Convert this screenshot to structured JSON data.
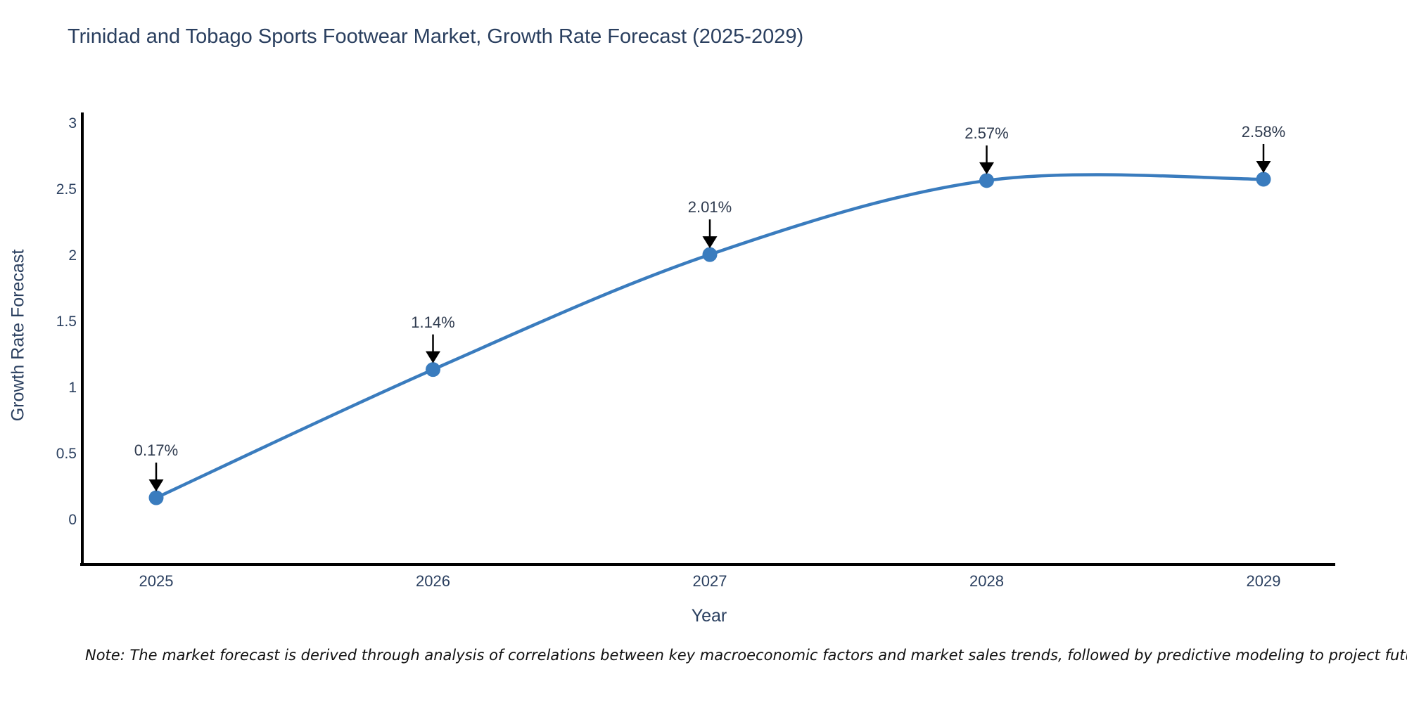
{
  "title": "Trinidad and Tobago Sports Footwear Market, Growth Rate Forecast (2025-2029)",
  "chart_data": {
    "type": "line",
    "curve": "spline",
    "x": [
      2025,
      2026,
      2027,
      2028,
      2029
    ],
    "y": [
      0.17,
      1.14,
      2.01,
      2.57,
      2.58
    ],
    "point_labels": [
      "0.17%",
      "1.14%",
      "2.01%",
      "2.57%",
      "2.58%"
    ],
    "xlabel": "Year",
    "ylabel": "Growth Rate Forecast",
    "yticks": [
      0,
      0.5,
      1,
      1.5,
      2,
      2.5,
      3
    ],
    "ytick_labels": [
      "0",
      "0.5",
      "1",
      "1.5",
      "2",
      "2.5",
      "3"
    ],
    "xtick_labels": [
      "2025",
      "2026",
      "2027",
      "2028",
      "2029"
    ],
    "ylim": [
      -0.34,
      3.09
    ],
    "grid": false,
    "legend_position": "none",
    "line_color": "#3a7cbe",
    "marker_color": "#3a7cbe",
    "arrow_color": "#000000",
    "axis_line_color": "#000000"
  },
  "note": "Note: The market forecast is derived through analysis of correlations between key macroeconomic factors and market sales trends, followed by predictive modeling to project future sales",
  "colors": {
    "title_text": "#2a3f5f",
    "tick_text": "#2a3f5f",
    "annotation_text": "#2e3a4e",
    "background": "#ffffff"
  }
}
